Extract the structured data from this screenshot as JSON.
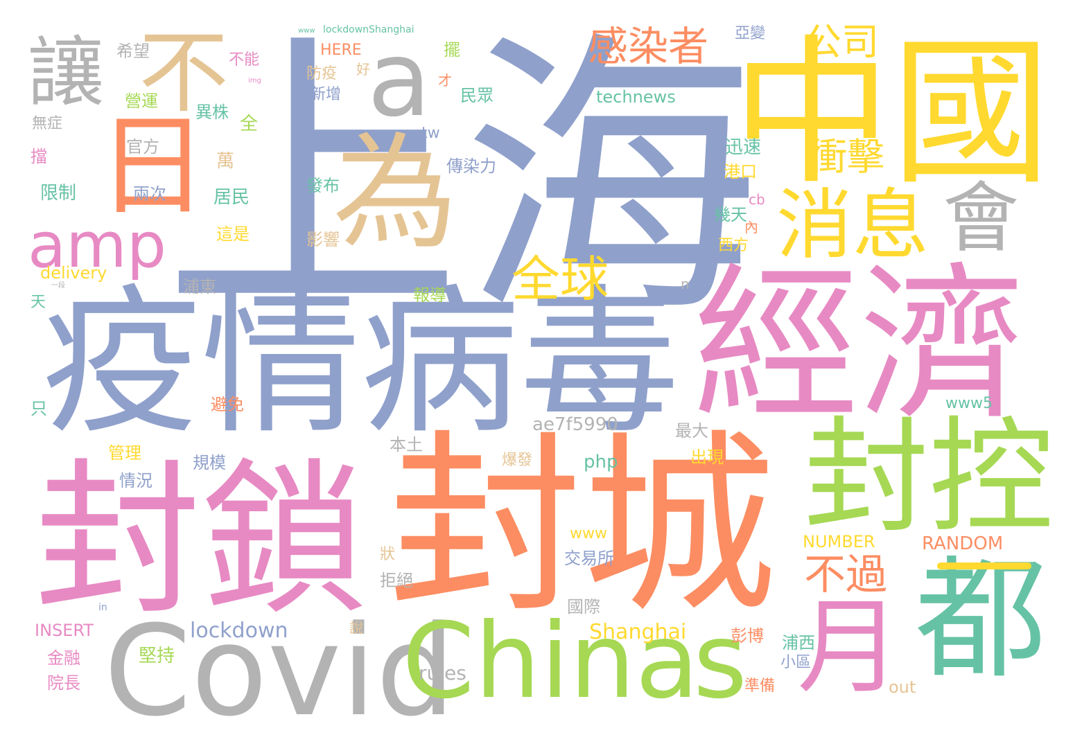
{
  "palette": {
    "blue": "#8fa0cb",
    "orange": "#fc8d62",
    "teal": "#66c2a5",
    "pink": "#e78ac3",
    "green": "#a6d854",
    "yellow": "#ffd92f",
    "tan": "#e5c494",
    "gray": "#b3b3b3"
  },
  "words": [
    "上海",
    "中國",
    "經濟",
    "疫情",
    "病毒",
    "封城",
    "封鎖",
    "封控",
    "Covid",
    "China",
    "s",
    "都",
    "月",
    "為",
    "a",
    "不",
    "讓",
    "日",
    "會",
    "amp",
    "消息",
    "全球",
    "感染者",
    "公司",
    "衝擊",
    "不過",
    "lockdown",
    "Shanghai",
    "rules",
    "out",
    "RANDOM",
    "NUMBER",
    "INSERT",
    "technews",
    "delivery",
    "ae7f5990",
    "www5",
    "www",
    "php",
    "HERE",
    "lockdownShanghai",
    "tw",
    "cb",
    "n",
    "in",
    "img",
    "www",
    "希望",
    "不能",
    "營運",
    "無症",
    "官方",
    "兩次",
    "擋",
    "限制",
    "異株",
    "全",
    "萬",
    "居民",
    "這是",
    "防疫",
    "新增",
    "好",
    "才",
    "擺",
    "民眾",
    "亞變",
    "傳染力",
    "發布",
    "影響",
    "迅速",
    "港口",
    "幾天",
    "西方",
    "內",
    "浦東",
    "天",
    "報導",
    "只",
    "避免",
    "本土",
    "最大",
    "管理",
    "規模",
    "情況",
    "爆發",
    "出現",
    "交易所",
    "拒絕",
    "狀",
    "國際",
    "說",
    "彭博",
    "浦西",
    "小區",
    "準備",
    "堅持",
    "金融",
    "院長",
    "一段"
  ]
}
